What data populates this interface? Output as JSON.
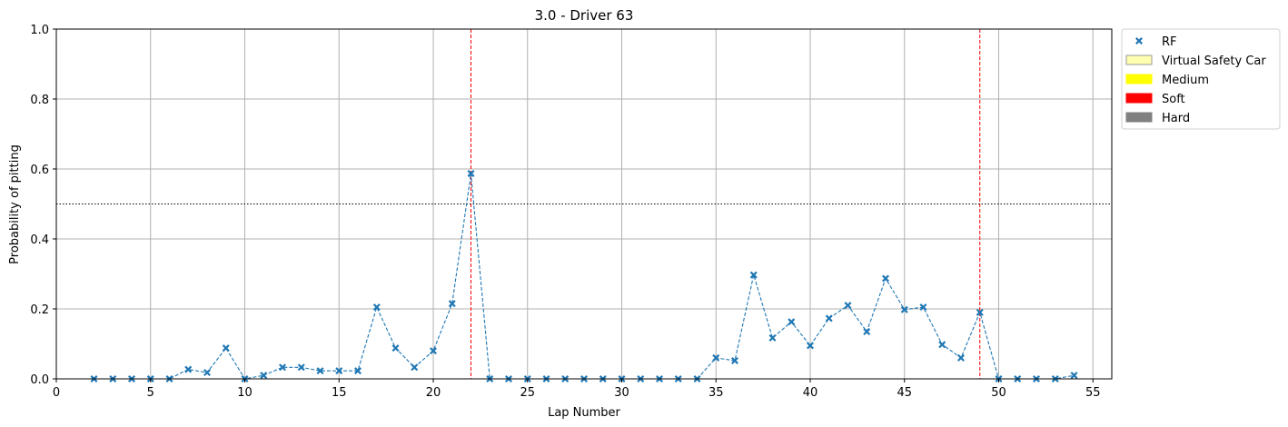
{
  "chart_data": {
    "type": "scatter",
    "title": "3.0 - Driver 63",
    "xlabel": "Lap Number",
    "ylabel": "Probability of pitting",
    "xlim": [
      0,
      56
    ],
    "ylim": [
      0,
      1.0
    ],
    "xticks": [
      0,
      5,
      10,
      15,
      20,
      25,
      30,
      35,
      40,
      45,
      50,
      55
    ],
    "yticks": [
      0.0,
      0.2,
      0.4,
      0.6,
      0.8,
      1.0
    ],
    "ytick_labels": [
      "0.0",
      "0.2",
      "0.4",
      "0.6",
      "0.8",
      "1.0"
    ],
    "grid": true,
    "threshold": 0.5,
    "pit_laps": [
      22,
      49
    ],
    "series": [
      {
        "name": "RF",
        "color": "#1f77b4",
        "marker": "x",
        "x": [
          2,
          3,
          4,
          5,
          6,
          7,
          8,
          9,
          10,
          11,
          12,
          13,
          14,
          15,
          16,
          17,
          18,
          19,
          20,
          21,
          22,
          23,
          24,
          25,
          26,
          27,
          28,
          29,
          30,
          31,
          32,
          33,
          34,
          35,
          36,
          37,
          38,
          39,
          40,
          41,
          42,
          43,
          44,
          45,
          46,
          47,
          48,
          49,
          50,
          51,
          52,
          53,
          54
        ],
        "y": [
          0.0,
          0.0,
          0.0,
          0.0,
          0.0,
          0.027,
          0.018,
          0.088,
          0.0,
          0.01,
          0.033,
          0.033,
          0.023,
          0.023,
          0.023,
          0.205,
          0.088,
          0.033,
          0.08,
          0.215,
          0.587,
          0.0,
          0.0,
          0.0,
          0.0,
          0.0,
          0.0,
          0.0,
          0.0,
          0.0,
          0.0,
          0.0,
          0.0,
          0.06,
          0.052,
          0.297,
          0.117,
          0.163,
          0.095,
          0.173,
          0.21,
          0.135,
          0.287,
          0.198,
          0.205,
          0.098,
          0.06,
          0.19,
          0.0,
          0.0,
          0.0,
          0.0,
          0.01
        ]
      }
    ],
    "legend": {
      "placement": "outside-top-right",
      "entries": [
        {
          "label": "RF",
          "kind": "marker",
          "color": "#1f77b4"
        },
        {
          "label": "Virtual Safety Car",
          "kind": "patch",
          "color": "#ffffb0",
          "edge": "#999999"
        },
        {
          "label": "Medium",
          "kind": "patch",
          "color": "#ffff00",
          "edge": "#ffff00"
        },
        {
          "label": "Soft",
          "kind": "patch",
          "color": "#ff0000",
          "edge": "#ff0000"
        },
        {
          "label": "Hard",
          "kind": "patch",
          "color": "#808080",
          "edge": "#808080"
        }
      ]
    }
  }
}
